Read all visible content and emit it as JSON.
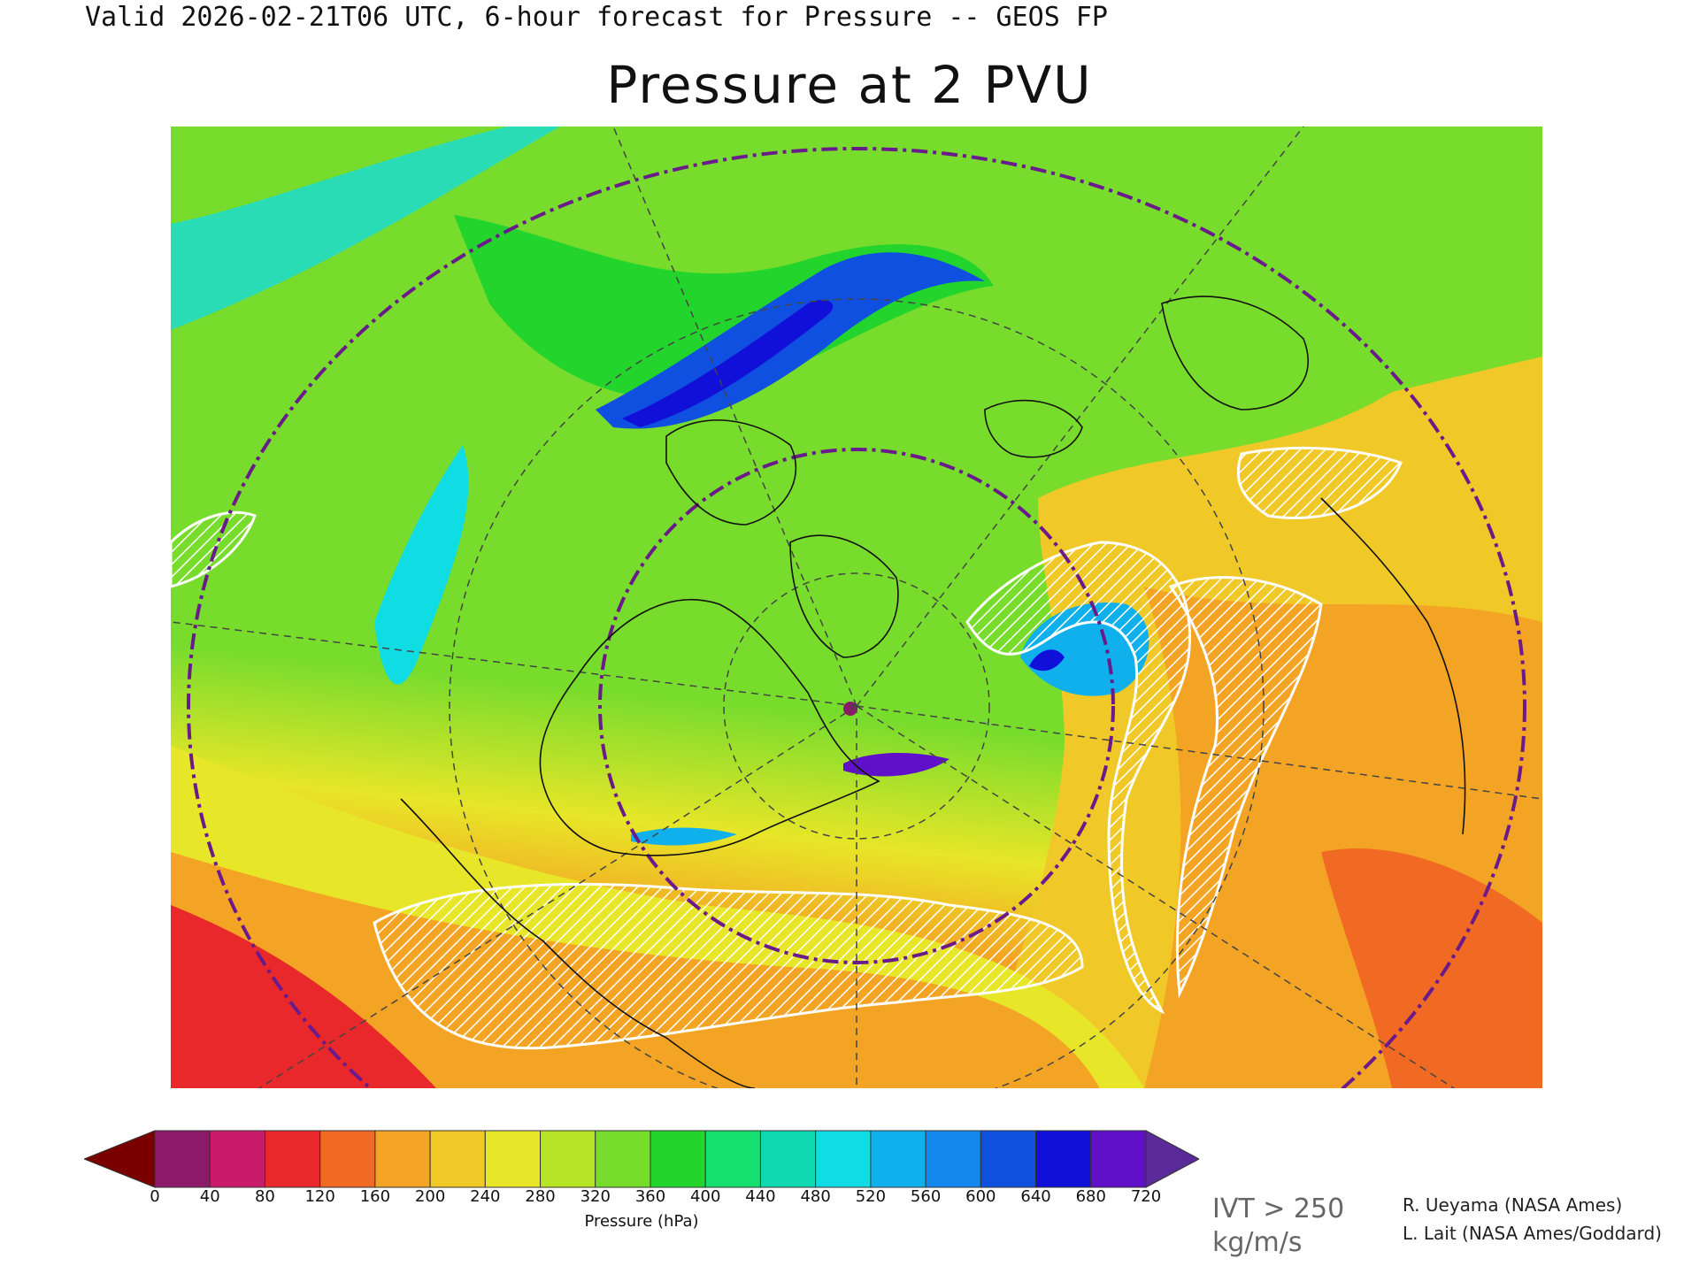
{
  "header": {
    "valid_line": "Valid 2026-02-21T06 UTC, 6-hour forecast for Pressure -- GEOS FP"
  },
  "title": "Pressure at 2 PVU",
  "colorbar": {
    "label": "Pressure (hPa)",
    "ticks": [
      "0",
      "40",
      "80",
      "120",
      "160",
      "200",
      "240",
      "280",
      "320",
      "360",
      "400",
      "440",
      "480",
      "520",
      "560",
      "600",
      "640",
      "680",
      "720"
    ],
    "colors": [
      "#8b1a6a",
      "#c81c6a",
      "#e8282a",
      "#f06a24",
      "#f4a424",
      "#f0c828",
      "#e8e628",
      "#b8e428",
      "#78dc2c",
      "#22d42c",
      "#16e070",
      "#10d8b0",
      "#10dce4",
      "#10b0ec",
      "#1488ec",
      "#1050e0",
      "#1010d8",
      "#6010c8"
    ],
    "under_color": "#7a0000",
    "over_color": "#5a2a9a"
  },
  "overlay_label": {
    "line1": "IVT > 250",
    "line2": "kg/m/s"
  },
  "credits": {
    "line1": "R. Ueyama (NASA Ames)",
    "line2": "L. Lait (NASA Ames/Goddard)"
  },
  "map_colors": {
    "background_low": "#e8282a",
    "background_mid": "#f4a424",
    "background_yellow": "#e8e628",
    "green": "#78dc2c",
    "bright_green": "#22d42c",
    "cyan": "#10dce4",
    "blue": "#1050e0",
    "dark_blue": "#1010d8",
    "hatch": "#ffffff",
    "circle": "#6a1a8a"
  }
}
